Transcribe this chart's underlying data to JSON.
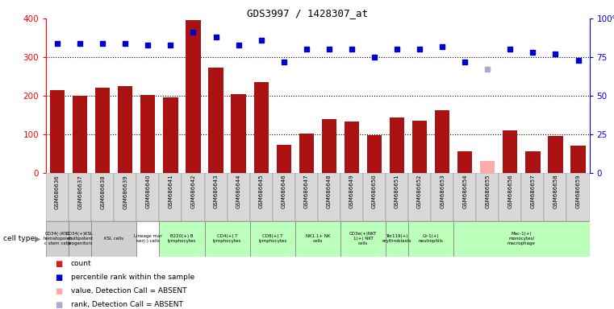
{
  "title": "GDS3997 / 1428307_at",
  "samples": [
    "GSM686636",
    "GSM686637",
    "GSM686638",
    "GSM686639",
    "GSM686640",
    "GSM686641",
    "GSM686642",
    "GSM686643",
    "GSM686644",
    "GSM686645",
    "GSM686646",
    "GSM686647",
    "GSM686648",
    "GSM686649",
    "GSM686650",
    "GSM686651",
    "GSM686652",
    "GSM686653",
    "GSM686654",
    "GSM686655",
    "GSM686656",
    "GSM686657",
    "GSM686658",
    "GSM686659"
  ],
  "counts": [
    215,
    200,
    220,
    225,
    202,
    195,
    395,
    272,
    205,
    235,
    72,
    103,
    140,
    133,
    98,
    143,
    135,
    162,
    57,
    32,
    110,
    57,
    95,
    70
  ],
  "absent_count_idx": [
    19
  ],
  "ranks": [
    84,
    84,
    84,
    84,
    83,
    83,
    91,
    88,
    83,
    86,
    72,
    80,
    80,
    80,
    75,
    80,
    80,
    82,
    72,
    67,
    80,
    78,
    77,
    73
  ],
  "absent_rank_idx": [
    19
  ],
  "cell_types": [
    {
      "label": "CD34(-)KSL\nhematopoiet\nc stem cells",
      "start": 0,
      "end": 1,
      "color": "#d0d0d0"
    },
    {
      "label": "CD34(+)KSL\nmultipotent\nprogenitors",
      "start": 1,
      "end": 2,
      "color": "#d0d0d0"
    },
    {
      "label": "KSL cells",
      "start": 2,
      "end": 4,
      "color": "#d0d0d0"
    },
    {
      "label": "Lineage mar\nker(-) cells",
      "start": 4,
      "end": 5,
      "color": "#ffffff"
    },
    {
      "label": "B220(+) B\nlymphocytes",
      "start": 5,
      "end": 7,
      "color": "#bbffbb"
    },
    {
      "label": "CD4(+) T\nlymphocytes",
      "start": 7,
      "end": 9,
      "color": "#bbffbb"
    },
    {
      "label": "CD8(+) T\nlymphocytes",
      "start": 9,
      "end": 11,
      "color": "#bbffbb"
    },
    {
      "label": "NK1.1+ NK\ncells",
      "start": 11,
      "end": 13,
      "color": "#bbffbb"
    },
    {
      "label": "CD3e(+)NKT\n1(+) NKT\ncells",
      "start": 13,
      "end": 15,
      "color": "#bbffbb"
    },
    {
      "label": "Ter119(+)\nerythroblasts",
      "start": 15,
      "end": 16,
      "color": "#bbffbb"
    },
    {
      "label": "Gr-1(+)\nneutrophils",
      "start": 16,
      "end": 18,
      "color": "#bbffbb"
    },
    {
      "label": "Mac-1(+)\nmonocytes/\nmacrophage",
      "start": 18,
      "end": 24,
      "color": "#bbffbb"
    }
  ],
  "ylim_left": [
    0,
    400
  ],
  "ylim_right": [
    0,
    100
  ],
  "yticks_left": [
    0,
    100,
    200,
    300,
    400
  ],
  "yticks_right": [
    0,
    25,
    50,
    75,
    100
  ],
  "bar_color": "#aa1111",
  "absent_bar_color": "#ffaaaa",
  "dot_color": "#0000cc",
  "absent_dot_color": "#aaaacc",
  "bg_color": "#ffffff",
  "legend_items": [
    {
      "color": "#cc2222",
      "label": "count"
    },
    {
      "color": "#0000cc",
      "label": "percentile rank within the sample"
    },
    {
      "color": "#ffaaaa",
      "label": "value, Detection Call = ABSENT"
    },
    {
      "color": "#aaaacc",
      "label": "rank, Detection Call = ABSENT"
    }
  ]
}
